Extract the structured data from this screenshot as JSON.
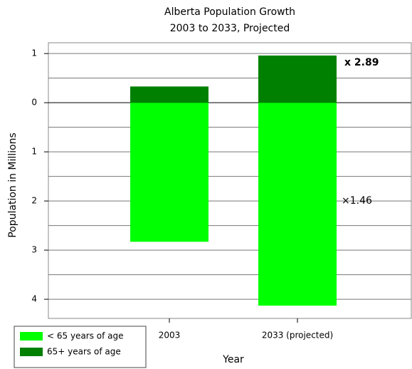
{
  "chart_data": {
    "type": "bar",
    "title": "Alberta Population Growth",
    "subtitle": "2003 to 2033, Projected",
    "x_label": "Year",
    "y_label": "Population in Millions",
    "categories": [
      "2003",
      "2033 (projected)"
    ],
    "series": [
      {
        "name": "< 65 years of age",
        "color": "#00ff00",
        "values": [
          -2.83,
          -4.13
        ]
      },
      {
        "name": "65+ years of age",
        "color": "#008000",
        "values": [
          0.33,
          0.96
        ]
      }
    ],
    "annotations": [
      "x 2.89",
      "×1.46"
    ],
    "annotation_colors": [
      "#e8202a",
      "#000000"
    ],
    "ylim": [
      -4.39,
      1.22
    ],
    "yticks": [
      1,
      0,
      {
        "value": -1,
        "label": "1"
      },
      {
        "value": -2,
        "label": "2"
      },
      {
        "value": -3,
        "label": "3"
      },
      {
        "value": -4,
        "label": "4"
      }
    ],
    "minor_gridlines": [
      0.5,
      -0.5,
      -1.5,
      -2.5,
      -3.5
    ],
    "grid": true,
    "legend": "bottom-left"
  }
}
